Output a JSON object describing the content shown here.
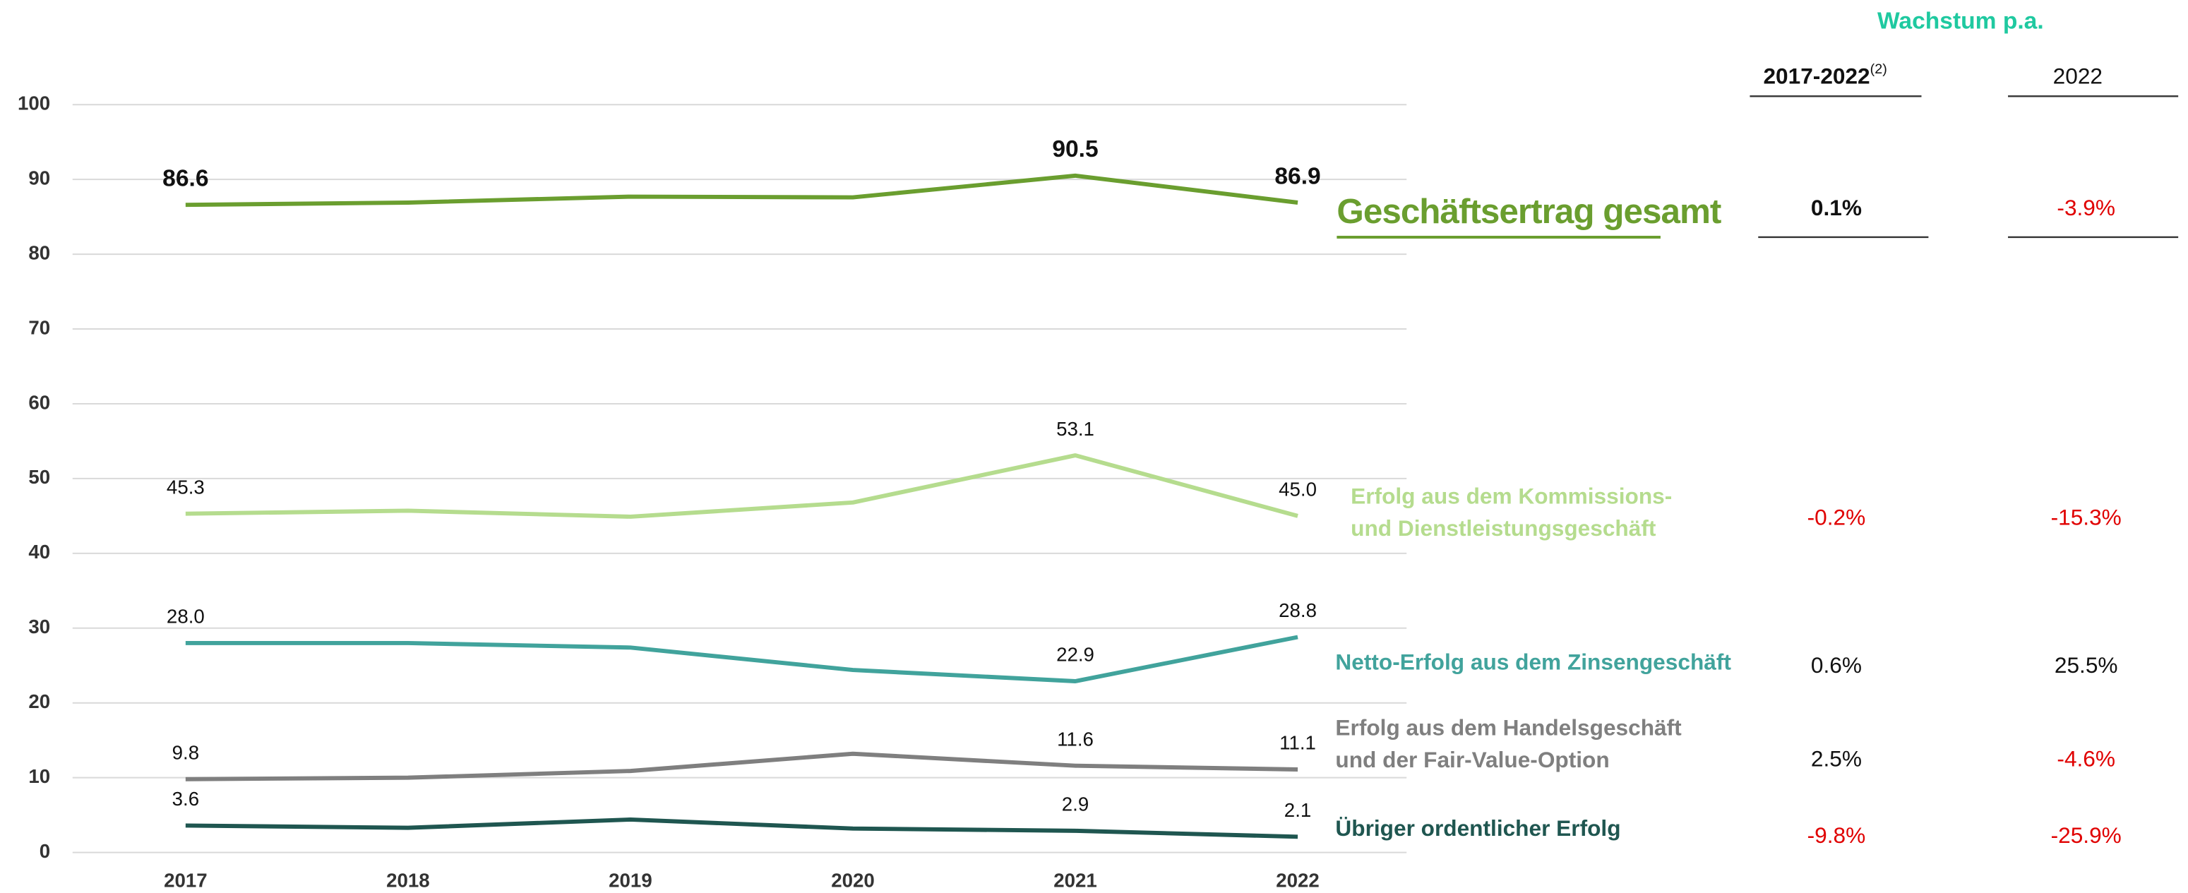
{
  "chart_data": {
    "type": "line",
    "categories": [
      "2017",
      "2018",
      "2019",
      "2020",
      "2021",
      "2022"
    ],
    "ylim": [
      0,
      100
    ],
    "yticks": [
      0,
      10,
      20,
      30,
      40,
      50,
      60,
      70,
      80,
      90,
      100
    ],
    "grid": true,
    "series": [
      {
        "name": "Geschäftsertrag gesamt",
        "color": "#6a9e2f",
        "values": [
          86.6,
          86.9,
          87.7,
          87.6,
          90.5,
          86.9
        ],
        "value_labels": [
          "86.6",
          null,
          null,
          null,
          "90.5",
          "86.9"
        ],
        "growth": [
          "0.1%",
          "-3.9%"
        ]
      },
      {
        "name": "Erfolg aus dem Kommissions-\nund Dienstleistungsgeschäft",
        "color": "#b5dc8e",
        "values": [
          45.3,
          45.7,
          44.9,
          46.8,
          53.1,
          45.0
        ],
        "value_labels": [
          "45.3",
          null,
          null,
          null,
          "53.1",
          "45.0"
        ],
        "growth": [
          "-0.2%",
          "-15.3%"
        ]
      },
      {
        "name": "Netto-Erfolg aus dem Zinsengeschäft",
        "color": "#41a39c",
        "values": [
          28.0,
          28.0,
          27.4,
          24.4,
          22.9,
          28.8
        ],
        "value_labels": [
          "28.0",
          null,
          null,
          null,
          "22.9",
          "28.8"
        ],
        "growth": [
          "0.6%",
          "25.5%"
        ]
      },
      {
        "name": "Erfolg aus dem Handelsgeschäft\nund der Fair-Value-Option",
        "color": "#7f7f7f",
        "values": [
          9.8,
          10.0,
          10.9,
          13.2,
          11.6,
          11.1
        ],
        "value_labels": [
          "9.8",
          null,
          null,
          null,
          "11.6",
          "11.1"
        ],
        "growth": [
          "2.5%",
          "-4.6%"
        ]
      },
      {
        "name": "Übriger ordentlicher Erfolg",
        "color": "#1f5650",
        "values": [
          3.6,
          3.3,
          4.4,
          3.2,
          2.9,
          2.1
        ],
        "value_labels": [
          "3.6",
          null,
          null,
          null,
          "2.9",
          "2.1"
        ],
        "growth": [
          "-9.8%",
          "-25.9%"
        ]
      }
    ],
    "growth_title": "Wachstum p.a.",
    "growth_columns": [
      {
        "label": "2017-2022",
        "note": "(2)"
      },
      {
        "label": "2022"
      }
    ]
  }
}
